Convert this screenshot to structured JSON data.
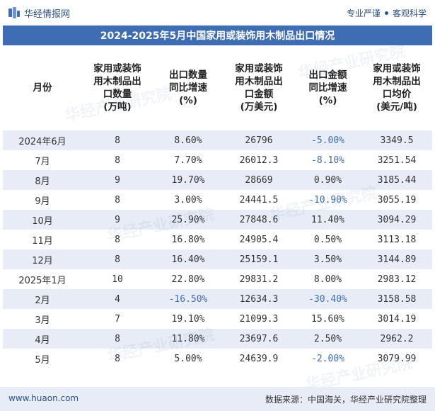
{
  "brand": {
    "name": "华经情报网"
  },
  "tagline": {
    "left": "专业严谨",
    "right": "客观科学"
  },
  "title": "2024-2025年5月中国家用或装饰用木制品出口情况",
  "headers": [
    {
      "lines": [
        "月份"
      ]
    },
    {
      "lines": [
        "家用或装饰",
        "用木制品出",
        "口数量",
        "(万吨)"
      ]
    },
    {
      "lines": [
        "出口数量",
        "同比增速",
        "(%)"
      ]
    },
    {
      "lines": [
        "家用或装饰",
        "用木制品出",
        "口金额",
        "(万美元)"
      ]
    },
    {
      "lines": [
        "出口金额",
        "同比增速",
        "(%)"
      ]
    },
    {
      "lines": [
        "家用或装饰",
        "用木制品出",
        "口均价",
        "(美元/吨)"
      ]
    }
  ],
  "rows": [
    {
      "month": "2024年6月",
      "qty": "8",
      "qty_yoy": "8.60%",
      "amount": "26796",
      "amount_yoy": "-5.00%",
      "price": "3349.5"
    },
    {
      "month": "7月",
      "qty": "8",
      "qty_yoy": "7.70%",
      "amount": "26012.3",
      "amount_yoy": "-8.10%",
      "price": "3251.54"
    },
    {
      "month": "8月",
      "qty": "9",
      "qty_yoy": "19.70%",
      "amount": "28669",
      "amount_yoy": "0.90%",
      "price": "3185.44"
    },
    {
      "month": "9月",
      "qty": "8",
      "qty_yoy": "3.00%",
      "amount": "24441.5",
      "amount_yoy": "-10.90%",
      "price": "3055.19"
    },
    {
      "month": "10月",
      "qty": "9",
      "qty_yoy": "25.90%",
      "amount": "27848.6",
      "amount_yoy": "11.40%",
      "price": "3094.29"
    },
    {
      "month": "11月",
      "qty": "8",
      "qty_yoy": "16.80%",
      "amount": "24905.4",
      "amount_yoy": "0.50%",
      "price": "3113.18"
    },
    {
      "month": "12月",
      "qty": "8",
      "qty_yoy": "16.40%",
      "amount": "25159.1",
      "amount_yoy": "3.50%",
      "price": "3144.89"
    },
    {
      "month": "2025年1月",
      "qty": "10",
      "qty_yoy": "22.80%",
      "amount": "29831.2",
      "amount_yoy": "8.00%",
      "price": "2983.12"
    },
    {
      "month": "2月",
      "qty": "4",
      "qty_yoy": "-16.50%",
      "amount": "12634.3",
      "amount_yoy": "-30.40%",
      "price": "3158.58"
    },
    {
      "month": "3月",
      "qty": "7",
      "qty_yoy": "19.10%",
      "amount": "21099.3",
      "amount_yoy": "15.60%",
      "price": "3014.19"
    },
    {
      "month": "4月",
      "qty": "8",
      "qty_yoy": "11.80%",
      "amount": "23697.6",
      "amount_yoy": "2.50%",
      "price": "2962.2"
    },
    {
      "month": "5月",
      "qty": "8",
      "qty_yoy": "5.00%",
      "amount": "24639.9",
      "amount_yoy": "-2.00%",
      "price": "3079.99"
    }
  ],
  "footer": {
    "site": "www.huaon.com",
    "source": "数据来源：中国海关，华经产业研究院整理"
  },
  "watermark": "华经产业研究院",
  "colors": {
    "accent": "#3f6db3",
    "band": "#e8ecf6",
    "negative": "#3f6db3"
  }
}
